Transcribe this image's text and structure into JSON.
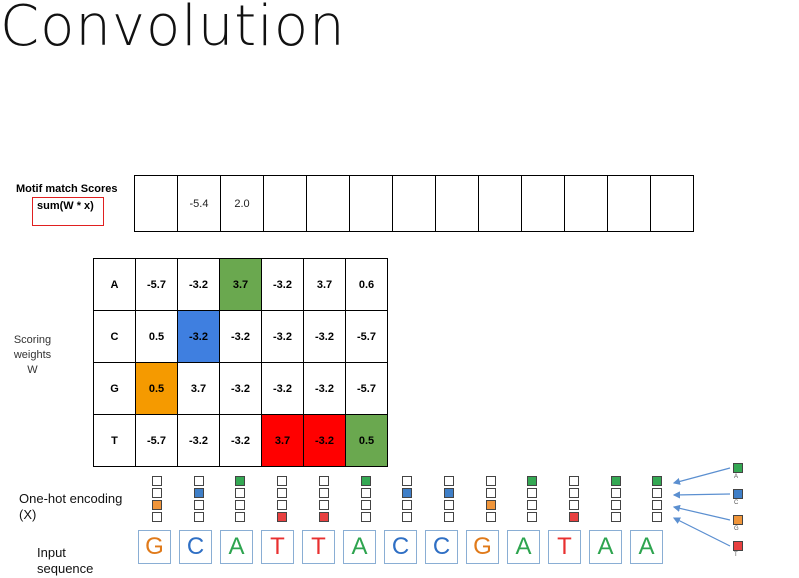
{
  "title": "Convolution",
  "scores": {
    "label": "Motif match Scores",
    "formula": "sum(W * x)",
    "values": [
      "",
      "-5.4",
      "2.0",
      "",
      "",
      "",
      "",
      "",
      "",
      "",
      "",
      "",
      ""
    ]
  },
  "weights": {
    "label_line1": "Scoring",
    "label_line2": "weights",
    "label_line3": "W",
    "rows": [
      {
        "base": "A",
        "values": [
          "-5.7",
          "-3.2",
          "3.7",
          "-3.2",
          "3.7",
          "0.6"
        ],
        "highlight": [
          null,
          null,
          "#6aa84f",
          null,
          null,
          null
        ]
      },
      {
        "base": "C",
        "values": [
          "0.5",
          "-3.2",
          "-3.2",
          "-3.2",
          "-3.2",
          "-5.7"
        ],
        "highlight": [
          null,
          "#3f7fe0",
          null,
          null,
          null,
          null
        ]
      },
      {
        "base": "G",
        "values": [
          "0.5",
          "3.7",
          "-3.2",
          "-3.2",
          "-3.2",
          "-5.7"
        ],
        "highlight": [
          "#f59a00",
          null,
          null,
          null,
          null,
          null
        ]
      },
      {
        "base": "T",
        "values": [
          "-5.7",
          "-3.2",
          "-3.2",
          "3.7",
          "-3.2",
          "0.5"
        ],
        "highlight": [
          null,
          null,
          null,
          "#ff0000",
          "#ff0000",
          "#6aa84f"
        ]
      }
    ]
  },
  "onehot": {
    "label_line1": "One-hot encoding",
    "label_line2": "(X)"
  },
  "input": {
    "label_line1": "Input",
    "label_line2": "sequence",
    "sequence": [
      "G",
      "C",
      "A",
      "T",
      "T",
      "A",
      "C",
      "C",
      "G",
      "A",
      "T",
      "A",
      "A"
    ]
  },
  "legend": [
    {
      "base": "A",
      "color": "#34a853"
    },
    {
      "base": "C",
      "color": "#3f7fc8"
    },
    {
      "base": "G",
      "color": "#f0953a"
    },
    {
      "base": "T",
      "color": "#e84040"
    }
  ],
  "colors": {
    "A": "#2ea44f",
    "C": "#2f6fc4",
    "G": "#e07a1a",
    "T": "#e83030",
    "arrow": "#5b8fd0"
  }
}
